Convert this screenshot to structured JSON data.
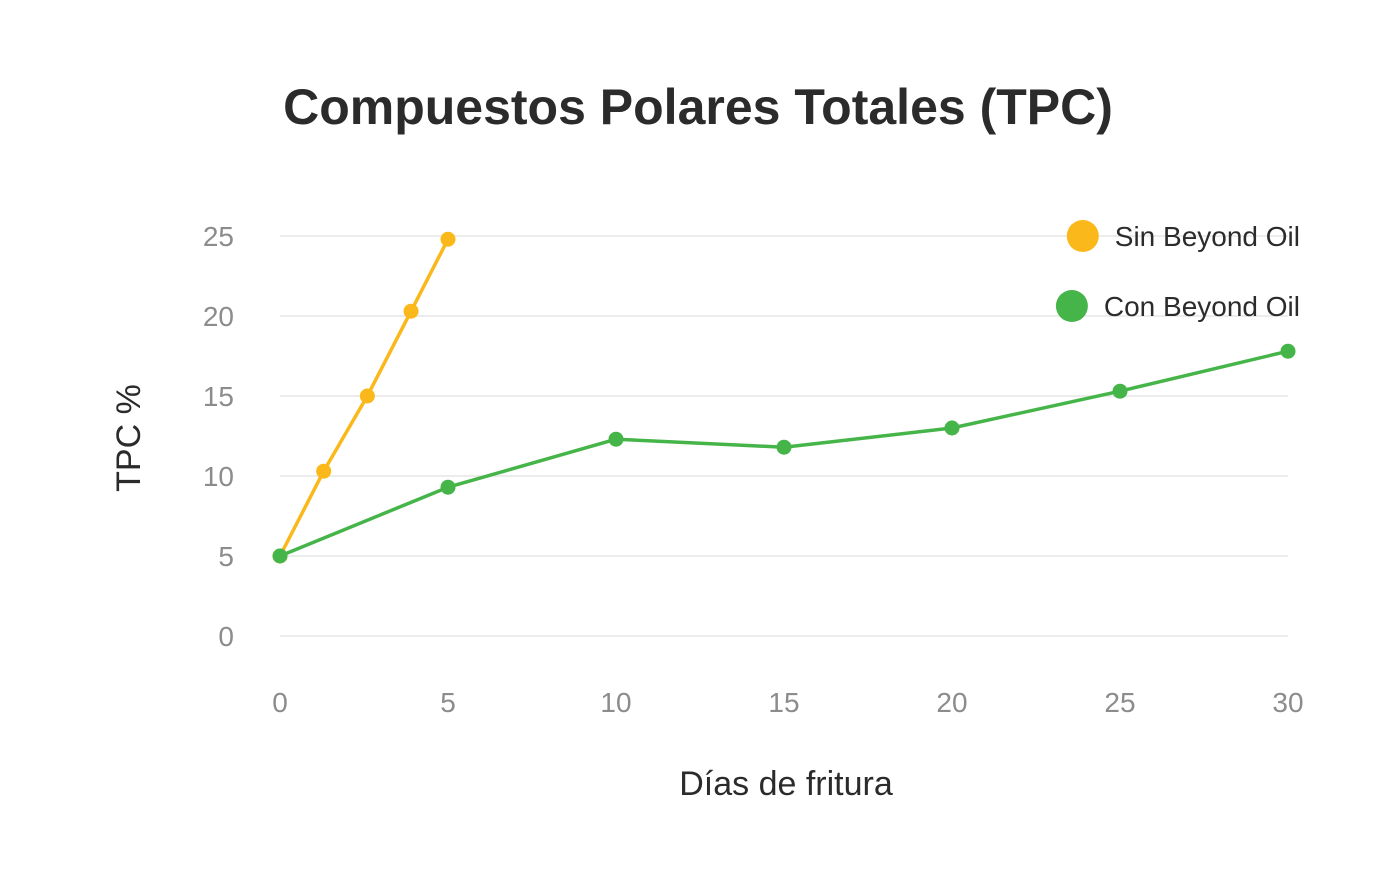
{
  "chart_data": {
    "type": "line",
    "title": "Compuestos Polares Totales (TPC)",
    "xlabel": "Días de fritura",
    "ylabel": "TPC %",
    "xlim": [
      0,
      30
    ],
    "ylim": [
      0,
      25
    ],
    "x_ticks": [
      0,
      5,
      10,
      15,
      20,
      25,
      30
    ],
    "y_ticks": [
      0,
      5,
      10,
      15,
      20,
      25
    ],
    "grid": "horizontal",
    "legend_position": "top-right",
    "series": [
      {
        "name": "Sin Beyond Oil",
        "color": "#FBB81B",
        "points": [
          [
            0,
            5.0
          ],
          [
            1.3,
            10.3
          ],
          [
            2.6,
            15.0
          ],
          [
            3.9,
            20.3
          ],
          [
            5,
            24.8
          ]
        ]
      },
      {
        "name": "Con Beyond Oil",
        "color": "#46B549",
        "points": [
          [
            0,
            5.0
          ],
          [
            5,
            9.3
          ],
          [
            10,
            12.3
          ],
          [
            15,
            11.8
          ],
          [
            20,
            13.0
          ],
          [
            25,
            15.3
          ],
          [
            30,
            17.8
          ]
        ]
      }
    ]
  }
}
